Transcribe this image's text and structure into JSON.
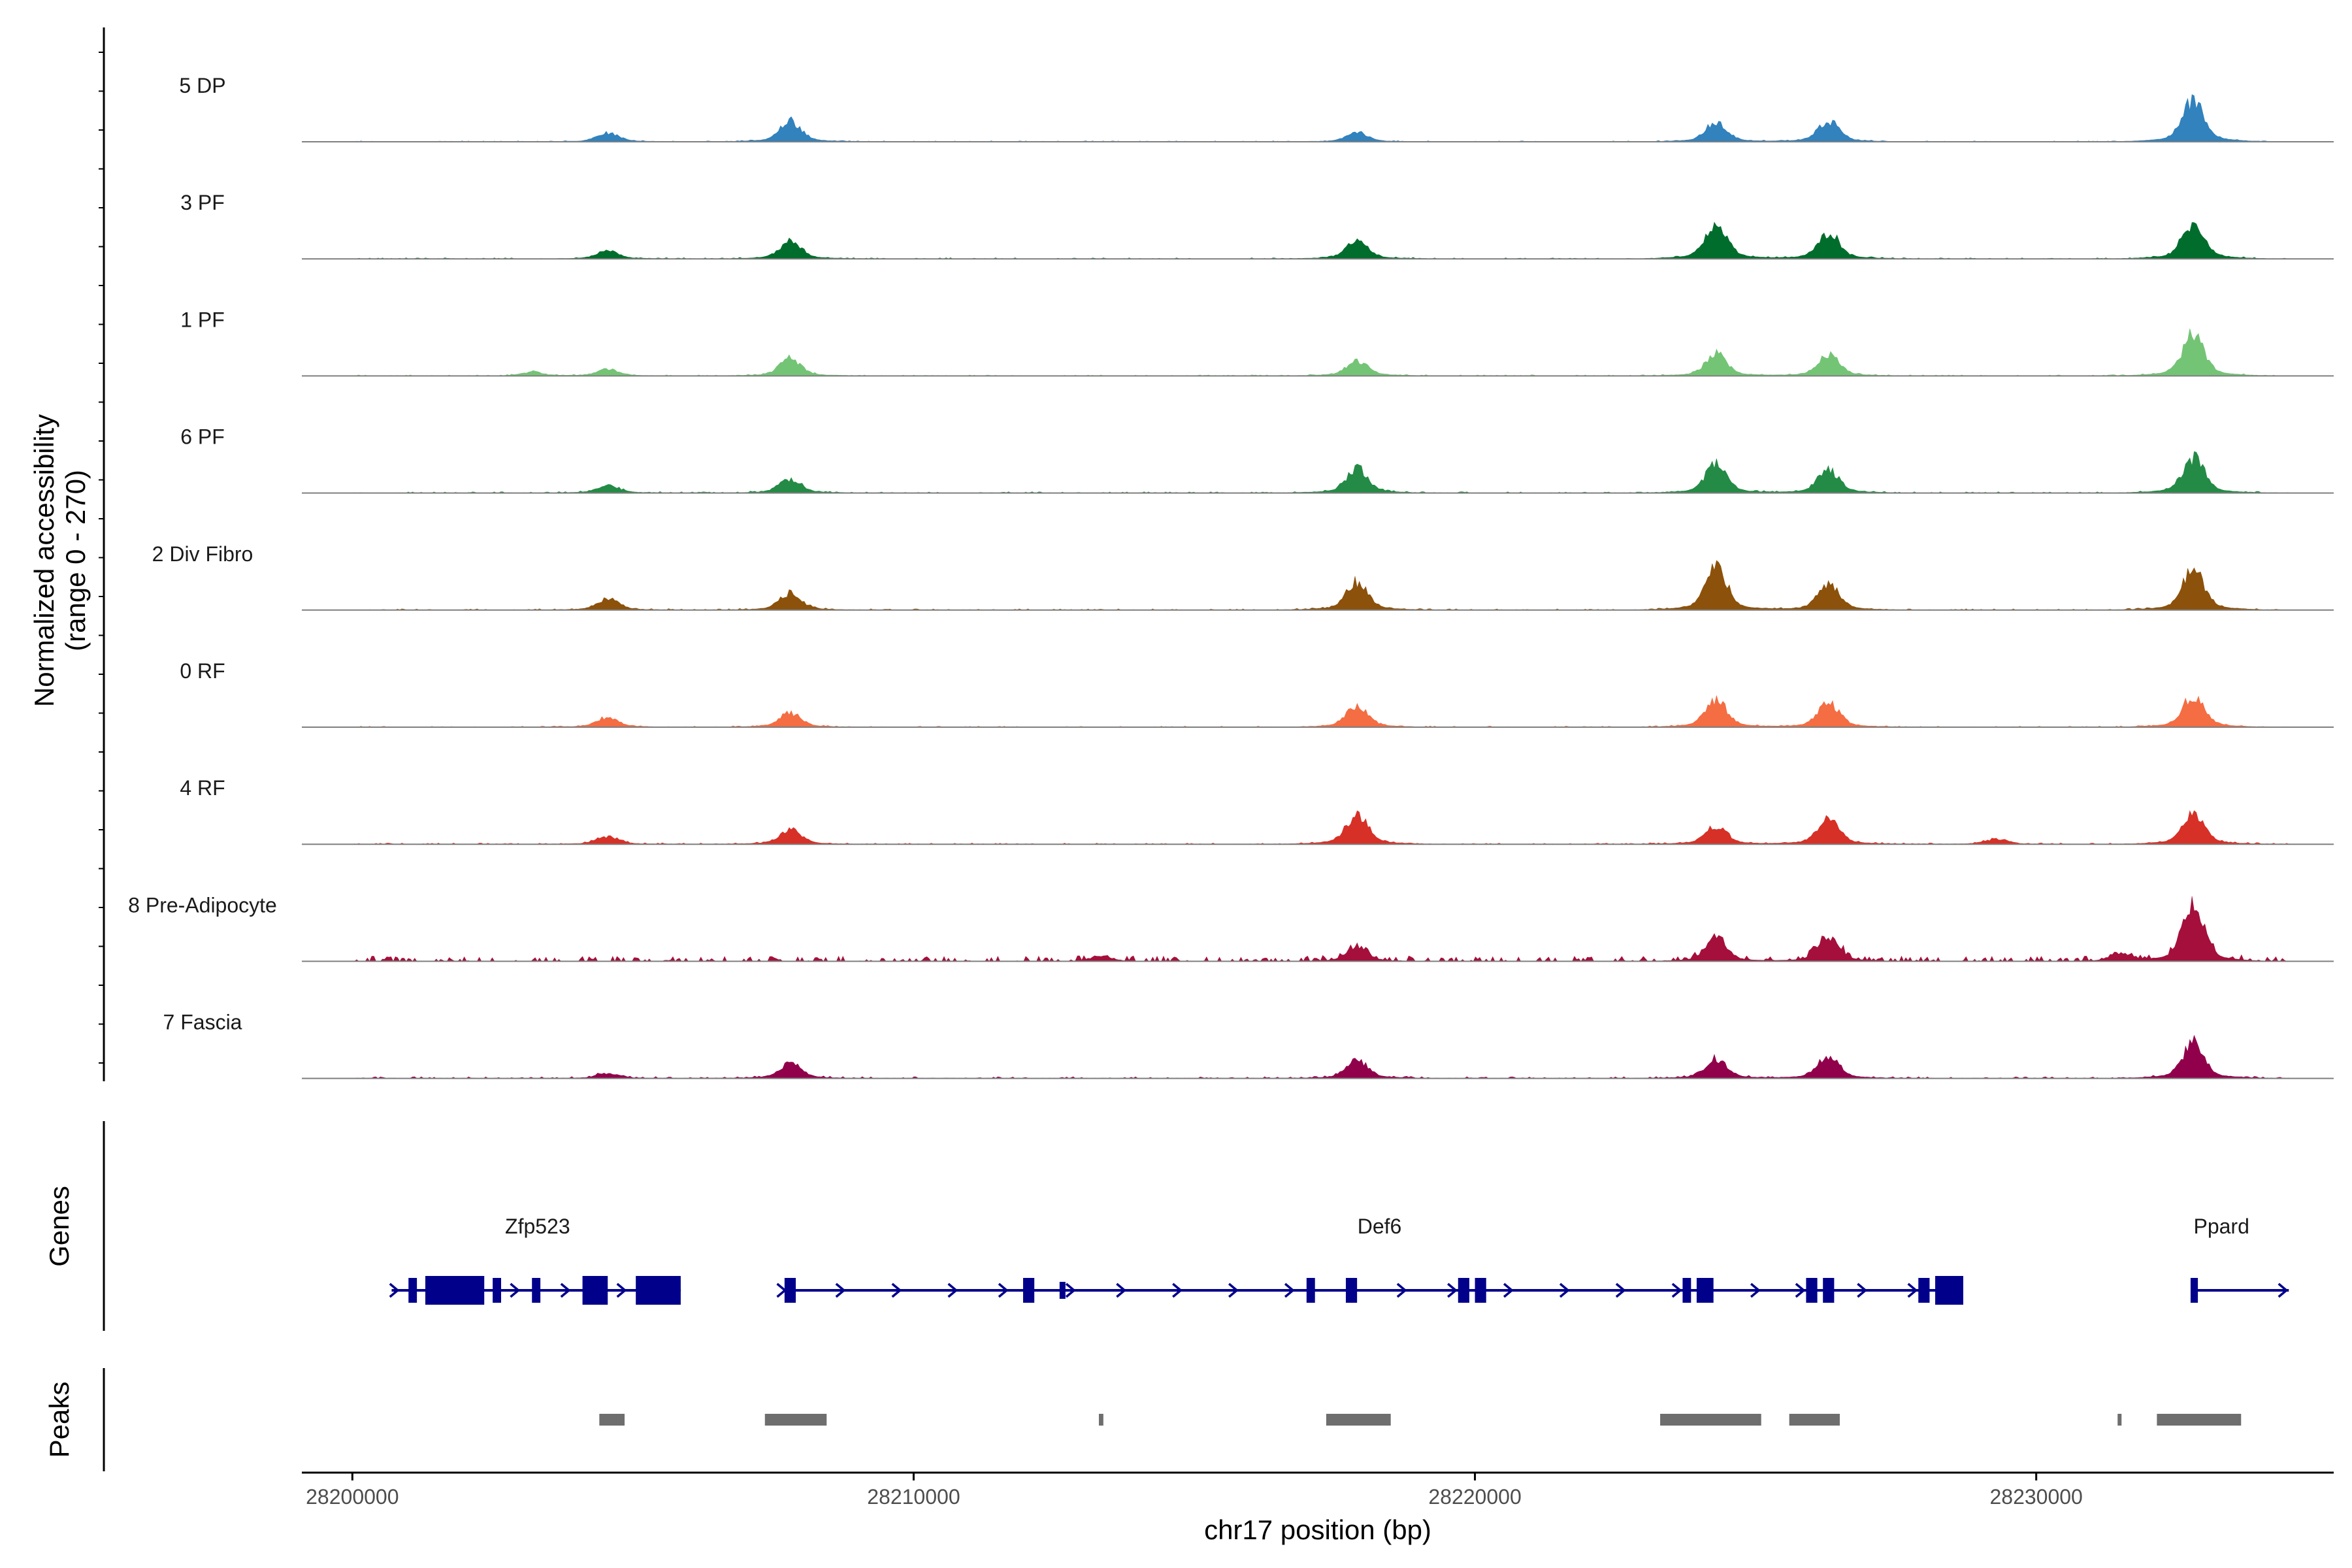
{
  "chart_data": {
    "type": "area",
    "description_free": true,
    "y_axis_title": "Normalized accessibility",
    "y_axis_range_label": "(range 0 - 270)",
    "y_range": [
      0,
      270
    ],
    "x_axis_title": "chr17 position (bp)",
    "x_range": [
      28199100,
      28235300
    ],
    "x_ticks": [
      28200000,
      28210000,
      28220000,
      28230000
    ],
    "x_tick_labels": [
      "28200000",
      "28210000",
      "28220000",
      "28230000"
    ],
    "data_extent": [
      28200000,
      28234500
    ],
    "genes_title": "Genes",
    "peaks_title": "Peaks",
    "tracks": [
      {
        "label": "5 DP",
        "color": "#3182bd",
        "noise": 0.5,
        "sparse": false,
        "peaks": [
          [
            28204550,
            7
          ],
          [
            28207800,
            16
          ],
          [
            28217900,
            7
          ],
          [
            28224300,
            15
          ],
          [
            28226300,
            16
          ],
          [
            28232800,
            32
          ]
        ]
      },
      {
        "label": "3 PF",
        "color": "#006d2c",
        "noise": 0.6,
        "sparse": false,
        "peaks": [
          [
            28204550,
            6
          ],
          [
            28207800,
            13
          ],
          [
            28217900,
            14
          ],
          [
            28224300,
            28
          ],
          [
            28226300,
            20
          ],
          [
            28232800,
            28
          ]
        ]
      },
      {
        "label": "1 PF",
        "color": "#74c476",
        "noise": 0.6,
        "sparse": false,
        "peaks": [
          [
            28203200,
            3
          ],
          [
            28204550,
            5
          ],
          [
            28207800,
            13
          ],
          [
            28217900,
            12
          ],
          [
            28224300,
            17
          ],
          [
            28226300,
            16
          ],
          [
            28232800,
            32
          ]
        ]
      },
      {
        "label": "6 PF",
        "color": "#238b45",
        "noise": 0.7,
        "sparse": false,
        "peaks": [
          [
            28204550,
            6
          ],
          [
            28207800,
            11
          ],
          [
            28217900,
            19
          ],
          [
            28224300,
            22
          ],
          [
            28226300,
            18
          ],
          [
            28232800,
            27
          ]
        ]
      },
      {
        "label": "2 Div Fibro",
        "color": "#8c510a",
        "noise": 0.7,
        "sparse": false,
        "peaks": [
          [
            28204550,
            9
          ],
          [
            28207800,
            13
          ],
          [
            28217900,
            22
          ],
          [
            28224300,
            33
          ],
          [
            28226300,
            20
          ],
          [
            28232800,
            31
          ]
        ]
      },
      {
        "label": "0 RF",
        "color": "#f46d43",
        "noise": 0.6,
        "sparse": false,
        "peaks": [
          [
            28204550,
            8
          ],
          [
            28207800,
            11
          ],
          [
            28217900,
            16
          ],
          [
            28224300,
            21
          ],
          [
            28226300,
            19
          ],
          [
            28232800,
            24
          ]
        ]
      },
      {
        "label": "4 RF",
        "color": "#d73027",
        "noise": 0.7,
        "sparse": false,
        "peaks": [
          [
            28204550,
            6
          ],
          [
            28207800,
            11
          ],
          [
            28217900,
            23
          ],
          [
            28224300,
            14
          ],
          [
            28226300,
            19
          ],
          [
            28229300,
            4
          ],
          [
            28232800,
            24
          ]
        ]
      },
      {
        "label": "8 Pre-Adipocyte",
        "color": "#a50f3c",
        "noise": 1.5,
        "sparse": true,
        "peaks": [
          [
            28213350,
            4
          ],
          [
            28217900,
            11
          ],
          [
            28224300,
            18
          ],
          [
            28226300,
            19
          ],
          [
            28231500,
            6
          ],
          [
            28232800,
            42
          ]
        ]
      },
      {
        "label": "7 Fascia",
        "color": "#91004b",
        "noise": 0.9,
        "sparse": false,
        "peaks": [
          [
            28204550,
            4
          ],
          [
            28207800,
            12
          ],
          [
            28217900,
            14
          ],
          [
            28224300,
            15
          ],
          [
            28226300,
            17
          ],
          [
            28232800,
            27
          ]
        ]
      }
    ],
    "genes": [
      {
        "name": "Zfp523",
        "label_pos": 28203300,
        "start": 28200700,
        "end": 28205850,
        "exons": [
          [
            28201000,
            28201150,
            "s"
          ],
          [
            28201300,
            28202350,
            "b"
          ],
          [
            28202500,
            28202650,
            "s"
          ],
          [
            28203200,
            28203350,
            "s"
          ],
          [
            28204100,
            28204550,
            "b"
          ],
          [
            28205050,
            28205850,
            "b"
          ]
        ],
        "arrows": [
          28200750,
          28202900,
          28203800,
          28204800
        ]
      },
      {
        "name": "Def6",
        "label_pos": 28218300,
        "start": 28207700,
        "end": 28228700,
        "exons": [
          [
            28207700,
            28207900,
            "s"
          ],
          [
            28211950,
            28212150,
            "s"
          ],
          [
            28212600,
            28212700,
            "t"
          ],
          [
            28217000,
            28217150,
            "s"
          ],
          [
            28217700,
            28217900,
            "s"
          ],
          [
            28219700,
            28219900,
            "s"
          ],
          [
            28220000,
            28220200,
            "s"
          ],
          [
            28223700,
            28223850,
            "s"
          ],
          [
            28223950,
            28224250,
            "s"
          ],
          [
            28225900,
            28226100,
            "s"
          ],
          [
            28226200,
            28226400,
            "s"
          ],
          [
            28227900,
            28228100,
            "s"
          ],
          [
            28228200,
            28228700,
            "b"
          ]
        ],
        "arrows": [
          28207650,
          28208700,
          28209700,
          28210700,
          28211600,
          28212800,
          28213700,
          28214700,
          28215700,
          28216700,
          28218700,
          28219600,
          28220600,
          28221600,
          28222600,
          28223600,
          28225000,
          28225800,
          28226900,
          28227800
        ]
      },
      {
        "name": "Ppard",
        "label_pos": 28233300,
        "start": 28232800,
        "end": 28234500,
        "exons": [
          [
            28232750,
            28232880,
            "s"
          ]
        ],
        "arrows": [
          28234400
        ]
      }
    ],
    "peak_regions": [
      [
        28204400,
        28204850
      ],
      [
        28207350,
        28208450
      ],
      [
        28213300,
        28213380
      ],
      [
        28217350,
        28218500
      ],
      [
        28223300,
        28225100
      ],
      [
        28225600,
        28226500
      ],
      [
        28231450,
        28231520
      ],
      [
        28232150,
        28233650
      ]
    ]
  }
}
